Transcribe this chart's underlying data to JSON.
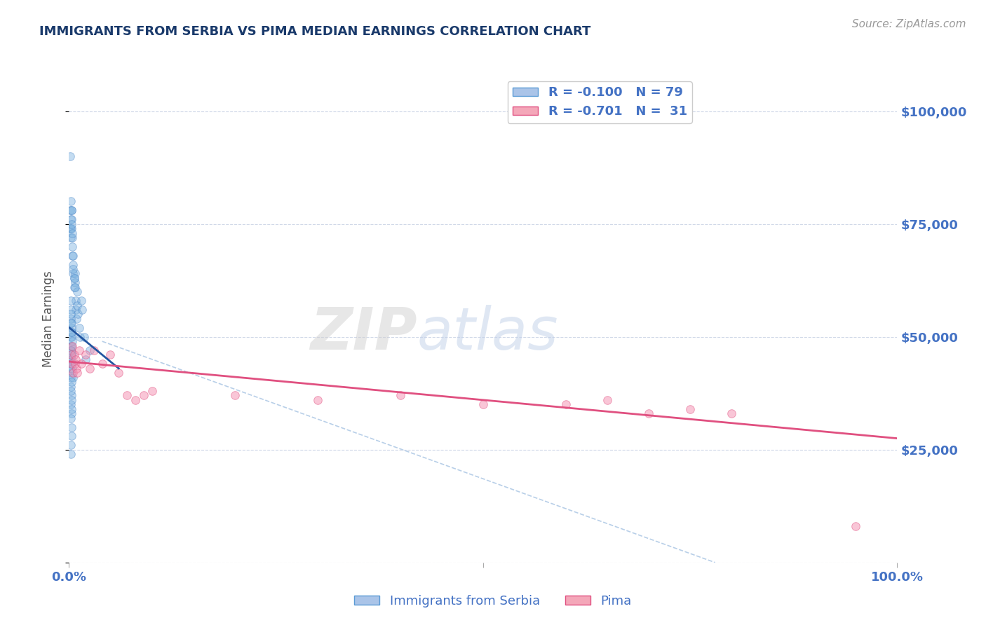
{
  "title": "IMMIGRANTS FROM SERBIA VS PIMA MEDIAN EARNINGS CORRELATION CHART",
  "source_text": "Source: ZipAtlas.com",
  "ylabel": "Median Earnings",
  "yticks": [
    0,
    25000,
    50000,
    75000,
    100000
  ],
  "ytick_labels": [
    "",
    "$25,000",
    "$50,000",
    "$75,000",
    "$100,000"
  ],
  "xmin": 0.0,
  "xmax": 1.0,
  "ymin": 0,
  "ymax": 108000,
  "legend_entries": [
    {
      "label": "R = -0.100   N = 79",
      "color": "#aac4e8",
      "edge": "#5b9bd5"
    },
    {
      "label": "R = -0.701   N =  31",
      "color": "#f4a7b9",
      "edge": "#e05080"
    }
  ],
  "bottom_legend": [
    {
      "label": "Immigrants from Serbia",
      "color": "#aac4e8",
      "edge": "#5b9bd5"
    },
    {
      "label": "Pima",
      "color": "#f4a7b9",
      "edge": "#e05080"
    }
  ],
  "blue_dots": {
    "x": [
      0.001,
      0.001,
      0.001,
      0.002,
      0.002,
      0.002,
      0.003,
      0.003,
      0.003,
      0.004,
      0.004,
      0.005,
      0.005,
      0.006,
      0.006,
      0.007,
      0.007,
      0.008,
      0.008,
      0.009,
      0.01,
      0.01,
      0.011,
      0.012,
      0.013,
      0.015,
      0.016,
      0.002,
      0.003,
      0.003,
      0.004,
      0.004,
      0.005,
      0.005,
      0.006,
      0.007,
      0.002,
      0.003,
      0.002,
      0.003,
      0.002,
      0.003,
      0.003,
      0.004,
      0.003,
      0.002,
      0.002,
      0.003,
      0.001,
      0.001,
      0.002,
      0.002,
      0.003,
      0.002,
      0.003,
      0.002,
      0.003,
      0.002,
      0.003,
      0.004,
      0.002,
      0.004,
      0.005,
      0.003,
      0.002,
      0.003,
      0.003,
      0.002,
      0.003,
      0.02,
      0.025,
      0.018,
      0.002,
      0.003,
      0.003,
      0.002,
      0.003,
      0.002,
      0.002
    ],
    "y": [
      90000,
      78000,
      74000,
      76000,
      74000,
      72000,
      78000,
      76000,
      74000,
      72000,
      68000,
      66000,
      64000,
      63000,
      61000,
      64000,
      62000,
      58000,
      56000,
      54000,
      60000,
      57000,
      55000,
      52000,
      50000,
      58000,
      56000,
      80000,
      78000,
      75000,
      73000,
      70000,
      68000,
      65000,
      63000,
      61000,
      48000,
      46000,
      44000,
      42000,
      50000,
      48000,
      46000,
      44000,
      52000,
      54000,
      56000,
      50000,
      45000,
      43000,
      41000,
      39000,
      37000,
      35000,
      33000,
      47000,
      45000,
      53000,
      51000,
      49000,
      47000,
      43000,
      41000,
      40000,
      38000,
      36000,
      34000,
      32000,
      30000,
      45000,
      47000,
      50000,
      55000,
      53000,
      51000,
      58000,
      28000,
      26000,
      24000
    ],
    "color": "#7eb3e0",
    "edge_color": "#4a86c8",
    "size": 70,
    "alpha": 0.45
  },
  "pink_dots": {
    "x": [
      0.002,
      0.003,
      0.004,
      0.005,
      0.006,
      0.007,
      0.008,
      0.009,
      0.01,
      0.012,
      0.015,
      0.02,
      0.025,
      0.03,
      0.04,
      0.05,
      0.06,
      0.07,
      0.08,
      0.09,
      0.1,
      0.2,
      0.3,
      0.4,
      0.5,
      0.6,
      0.65,
      0.7,
      0.75,
      0.8,
      0.95
    ],
    "y": [
      46000,
      44000,
      48000,
      42000,
      46000,
      44000,
      45000,
      43000,
      42000,
      47000,
      44000,
      46000,
      43000,
      47000,
      44000,
      46000,
      42000,
      37000,
      36000,
      37000,
      38000,
      37000,
      36000,
      37000,
      35000,
      35000,
      36000,
      33000,
      34000,
      33000,
      8000
    ],
    "color": "#f48fb1",
    "edge_color": "#e05080",
    "size": 70,
    "alpha": 0.5
  },
  "trendline_blue": {
    "x": [
      0.0005,
      0.06
    ],
    "y": [
      52000,
      43000
    ],
    "color": "#2255a0",
    "linewidth": 2.0
  },
  "trendline_pink": {
    "x": [
      0.0005,
      1.0
    ],
    "y": [
      44500,
      27500
    ],
    "color": "#e05080",
    "linewidth": 2.0
  },
  "dashed_line": {
    "x": [
      0.04,
      0.78
    ],
    "y": [
      49000,
      0
    ],
    "color": "#b8cfe8",
    "linewidth": 1.2,
    "linestyle": "--"
  },
  "watermark_zip": "ZIP",
  "watermark_atlas": "atlas",
  "watermark_zip_color": "#d0d0d0",
  "watermark_atlas_color": "#c0d0e8",
  "watermark_alpha": 0.5,
  "background_color": "#ffffff",
  "grid_color": "#d0d8e8",
  "title_color": "#1a3a6b",
  "axis_label_color": "#4472c4",
  "right_tick_color": "#4472c4",
  "source_color": "#999999"
}
